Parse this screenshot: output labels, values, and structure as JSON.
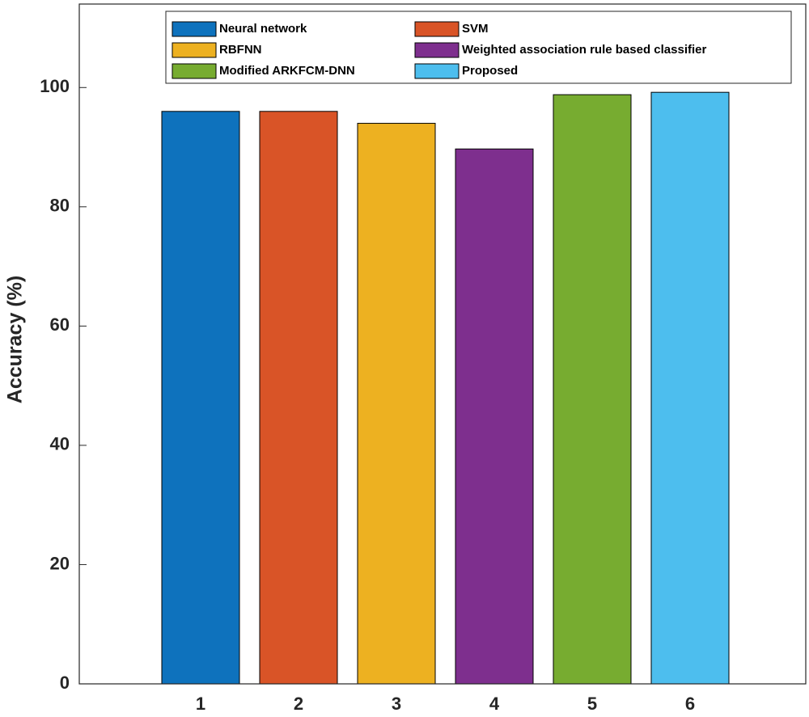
{
  "chart_data": {
    "type": "bar",
    "y_label": "Accuracy (%)",
    "categories": [
      "1",
      "2",
      "3",
      "4",
      "5",
      "6"
    ],
    "series": [
      {
        "name": "Neural network",
        "color": "#0e72bd",
        "values": [
          96,
          null,
          null,
          null,
          null,
          null
        ]
      },
      {
        "name": "SVM",
        "color": "#d95427",
        "values": [
          null,
          96,
          null,
          null,
          null,
          null
        ]
      },
      {
        "name": "RBFNN",
        "color": "#edb121",
        "values": [
          null,
          null,
          94,
          null,
          null,
          null
        ]
      },
      {
        "name": "Weighted association rule based classifier",
        "color": "#7e2f8e",
        "values": [
          null,
          null,
          null,
          89.7,
          null,
          null
        ]
      },
      {
        "name": "Modified ARKFCM-DNN",
        "color": "#77ac30",
        "values": [
          null,
          null,
          null,
          null,
          98.8,
          null
        ]
      },
      {
        "name": "Proposed",
        "color": "#4dbeee",
        "values": [
          null,
          null,
          null,
          null,
          null,
          99.2
        ]
      }
    ],
    "ylim": [
      0,
      114
    ],
    "yticks": [
      0,
      20,
      40,
      60,
      80,
      100
    ],
    "legend": "top"
  }
}
